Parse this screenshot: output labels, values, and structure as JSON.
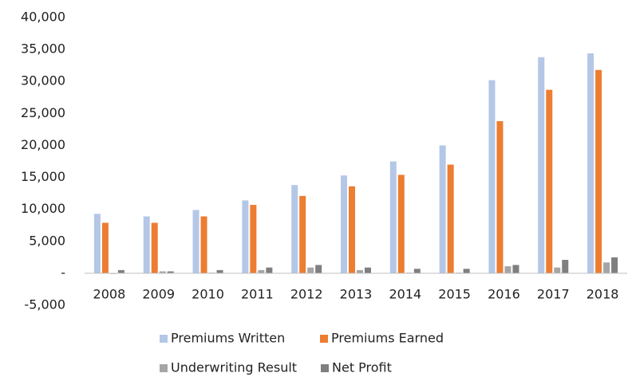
{
  "chart_data": {
    "type": "bar",
    "categories": [
      "2008",
      "2009",
      "2010",
      "2011",
      "2012",
      "2013",
      "2014",
      "2015",
      "2016",
      "2017",
      "2018"
    ],
    "series": [
      {
        "name": "Premiums Written",
        "color": "#b4c7e7",
        "values": [
          9300,
          8900,
          9900,
          11400,
          13800,
          15300,
          17500,
          20000,
          30200,
          33800,
          34400
        ]
      },
      {
        "name": "Premiums Earned",
        "color": "#ed7d31",
        "values": [
          7900,
          7900,
          8900,
          10700,
          12100,
          13600,
          15400,
          17000,
          23800,
          28700,
          31800
        ]
      },
      {
        "name": "Underwriting Result",
        "color": "#a5a5a5",
        "values": [
          -100,
          300,
          100,
          500,
          900,
          500,
          100,
          100,
          1100,
          900,
          1700
        ]
      },
      {
        "name": "Net Profit",
        "color": "#7f7f7f",
        "values": [
          500,
          300,
          500,
          900,
          1300,
          900,
          700,
          700,
          1300,
          2100,
          2500
        ]
      }
    ],
    "ylim": [
      -5000,
      40000
    ],
    "yticks": [
      {
        "value": -5000,
        "label": "-5,000"
      },
      {
        "value": 0,
        "label": "-"
      },
      {
        "value": 5000,
        "label": "5,000"
      },
      {
        "value": 10000,
        "label": "10,000"
      },
      {
        "value": 15000,
        "label": "15,000"
      },
      {
        "value": 20000,
        "label": "20,000"
      },
      {
        "value": 25000,
        "label": "25,000"
      },
      {
        "value": 30000,
        "label": "30,000"
      },
      {
        "value": 35000,
        "label": "35,000"
      },
      {
        "value": 40000,
        "label": "40,000"
      }
    ],
    "grid": false,
    "legend": "bottom"
  }
}
